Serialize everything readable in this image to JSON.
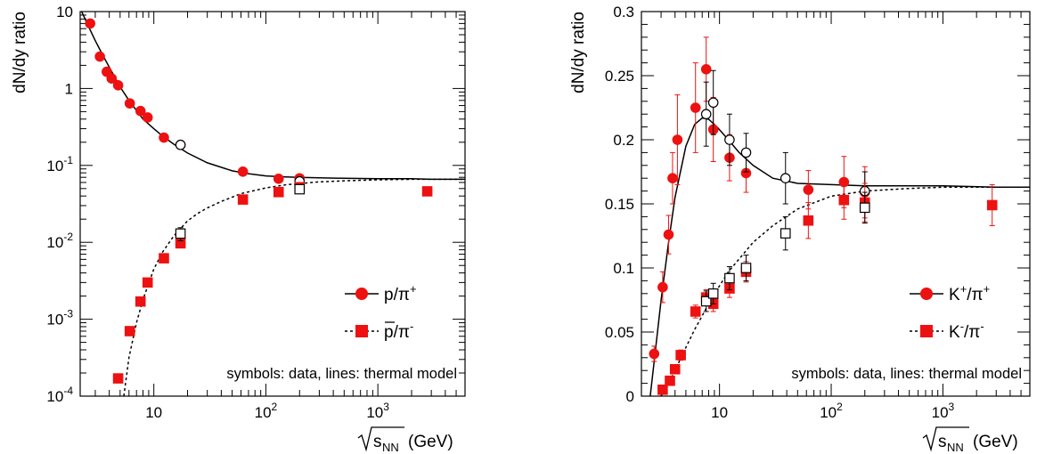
{
  "chart_data": [
    {
      "type": "scatter",
      "ylabel": "dN/dy ratio",
      "xlabel": "(GeV)",
      "xlabel_sqrt": "s",
      "xlabel_sub": "NN",
      "xscale": "log",
      "yscale": "log",
      "xlim": [
        2.2,
        6000
      ],
      "ylim": [
        0.0001,
        10
      ],
      "xtick_labels": [
        {
          "value": 10,
          "base": "10",
          "exp": ""
        },
        {
          "value": 100,
          "base": "10",
          "exp": "2"
        },
        {
          "value": 1000,
          "base": "10",
          "exp": "3"
        }
      ],
      "ytick_labels": [
        {
          "value": 0.0001,
          "base": "10",
          "exp": "-4"
        },
        {
          "value": 0.001,
          "base": "10",
          "exp": "-3"
        },
        {
          "value": 0.01,
          "base": "10",
          "exp": "-2"
        },
        {
          "value": 0.1,
          "base": "10",
          "exp": "-1"
        },
        {
          "value": 1,
          "base": "1",
          "exp": ""
        },
        {
          "value": 10,
          "base": "10",
          "exp": ""
        }
      ],
      "annotation": "symbols: data, lines: thermal model",
      "legend_position": "lower-right",
      "legend": [
        {
          "base": "p/π",
          "sup": "+",
          "marker": "circle",
          "line": "solid"
        },
        {
          "base": "p/π",
          "sup": "-",
          "marker": "square",
          "line": "dotted",
          "overline": true
        }
      ],
      "series": [
        {
          "id": "p_pi_plus_data",
          "marker": "circle",
          "color": "#ee1111",
          "filled": true,
          "x": [
            2.7,
            3.3,
            3.8,
            4.2,
            4.8,
            6.1,
            7.6,
            8.8,
            12.3,
            17.3,
            62.4,
            130,
            200
          ],
          "y": [
            7.0,
            2.6,
            1.65,
            1.35,
            1.1,
            0.64,
            0.51,
            0.42,
            0.23,
            0.185,
            0.083,
            0.067,
            0.068
          ],
          "err": [
            0.6,
            0.2,
            0.12,
            0.1,
            0.08,
            0.05,
            0.04,
            0.03,
            0.02,
            0.015,
            0.01,
            0.006,
            0.008
          ]
        },
        {
          "id": "p_pi_plus_data_open",
          "marker": "circle",
          "color": "#000000",
          "filled": false,
          "x": [
            17.3,
            200
          ],
          "y": [
            0.185,
            0.062
          ],
          "err": [
            0.012,
            0.006
          ]
        },
        {
          "id": "pbar_pi_minus_data",
          "marker": "square",
          "color": "#ee1111",
          "filled": true,
          "x": [
            4.8,
            6.1,
            7.6,
            8.8,
            12.3,
            17.3,
            62.4,
            130,
            200,
            2760
          ],
          "y": [
            0.00017,
            0.0007,
            0.0017,
            0.003,
            0.0062,
            0.0097,
            0.036,
            0.045,
            0.052,
            0.046
          ],
          "err": [
            2e-05,
            8e-05,
            0.0002,
            0.0003,
            0.0006,
            0.001,
            0.004,
            0.005,
            0.006,
            0.004
          ]
        },
        {
          "id": "pbar_pi_minus_data_open",
          "marker": "square",
          "color": "#000000",
          "filled": false,
          "x": [
            17.3,
            200
          ],
          "y": [
            0.013,
            0.049
          ],
          "err": [
            0.0025,
            0.005
          ]
        },
        {
          "id": "thermal_model_p_pi_plus",
          "type": "line",
          "style": "solid",
          "x": [
            2.2,
            2.6,
            3,
            3.5,
            4,
            5,
            6,
            8,
            10,
            12,
            15,
            20,
            30,
            50,
            70,
            100,
            150,
            200,
            300,
            500,
            1000,
            2000,
            3000,
            6000
          ],
          "y": [
            11,
            6.5,
            4.2,
            2.7,
            1.9,
            1.05,
            0.7,
            0.4,
            0.3,
            0.24,
            0.19,
            0.145,
            0.108,
            0.085,
            0.078,
            0.073,
            0.071,
            0.07,
            0.069,
            0.068,
            0.067,
            0.067,
            0.066,
            0.066
          ]
        },
        {
          "id": "thermal_model_pbar_pi_minus",
          "type": "line",
          "style": "dotted",
          "x": [
            5.4,
            6,
            7,
            8,
            10,
            12,
            15,
            20,
            25,
            30,
            40,
            60,
            100,
            150,
            200,
            300,
            500,
            1000,
            2000,
            3000,
            6000
          ],
          "y": [
            0.0001,
            0.00032,
            0.0009,
            0.0018,
            0.0045,
            0.0075,
            0.012,
            0.019,
            0.024,
            0.028,
            0.034,
            0.043,
            0.051,
            0.056,
            0.058,
            0.061,
            0.063,
            0.065,
            0.066,
            0.066,
            0.066
          ]
        }
      ]
    },
    {
      "type": "scatter",
      "ylabel": "dN/dy ratio",
      "xlabel": "(GeV)",
      "xlabel_sqrt": "s",
      "xlabel_sub": "NN",
      "xscale": "log",
      "yscale": "linear",
      "xlim": [
        2.0,
        6000
      ],
      "ylim": [
        0,
        0.3
      ],
      "xtick_labels": [
        {
          "value": 10,
          "base": "10",
          "exp": ""
        },
        {
          "value": 100,
          "base": "10",
          "exp": "2"
        },
        {
          "value": 1000,
          "base": "10",
          "exp": "3"
        }
      ],
      "ytick_labels": [
        {
          "value": 0,
          "text": "0"
        },
        {
          "value": 0.05,
          "text": "0.05"
        },
        {
          "value": 0.1,
          "text": "0.1"
        },
        {
          "value": 0.15,
          "text": "0.15"
        },
        {
          "value": 0.2,
          "text": "0.2"
        },
        {
          "value": 0.25,
          "text": "0.25"
        },
        {
          "value": 0.3,
          "text": "0.3"
        }
      ],
      "annotation": "symbols: data, lines: thermal model",
      "legend_position": "lower-right",
      "legend": [
        {
          "base": "K",
          "sup": "+",
          "base2": "/π",
          "sup2": "+",
          "marker": "circle",
          "line": "solid"
        },
        {
          "base": "K",
          "sup": "-",
          "base2": "/π",
          "sup2": "-",
          "marker": "square",
          "line": "dotted"
        }
      ],
      "series": [
        {
          "id": "k_plus_pi_plus_data",
          "marker": "circle",
          "color": "#ee1111",
          "filled": true,
          "x": [
            2.6,
            3.1,
            3.5,
            3.8,
            4.2,
            6.1,
            7.6,
            8.8,
            12.3,
            17.3,
            62.4,
            130,
            200
          ],
          "y": [
            0.033,
            0.085,
            0.126,
            0.17,
            0.2,
            0.225,
            0.255,
            0.208,
            0.186,
            0.174,
            0.161,
            0.167,
            0.159
          ],
          "err": [
            0.006,
            0.012,
            0.015,
            0.02,
            0.035,
            0.035,
            0.025,
            0.025,
            0.018,
            0.015,
            0.015,
            0.02,
            0.02
          ]
        },
        {
          "id": "k_plus_pi_plus_data_open",
          "marker": "circle",
          "color": "#000000",
          "filled": false,
          "x": [
            7.6,
            8.8,
            12.3,
            17.3,
            39,
            200
          ],
          "y": [
            0.22,
            0.229,
            0.2,
            0.19,
            0.17,
            0.16
          ],
          "err": [
            0.025,
            0.025,
            0.02,
            0.015,
            0.02,
            0.015
          ]
        },
        {
          "id": "k_minus_pi_minus_data",
          "marker": "square",
          "color": "#ee1111",
          "filled": true,
          "x": [
            3.1,
            3.6,
            4.0,
            4.5,
            6.1,
            7.6,
            8.8,
            12.3,
            17.3,
            62.4,
            130,
            200,
            2760
          ],
          "y": [
            0.005,
            0.012,
            0.021,
            0.032,
            0.066,
            0.077,
            0.072,
            0.084,
            0.097,
            0.137,
            0.153,
            0.151,
            0.149
          ],
          "err": [
            0.002,
            0.003,
            0.003,
            0.004,
            0.005,
            0.006,
            0.006,
            0.007,
            0.008,
            0.014,
            0.015,
            0.015,
            0.016
          ]
        },
        {
          "id": "k_minus_pi_minus_data_open",
          "marker": "square",
          "color": "#000000",
          "filled": false,
          "x": [
            7.6,
            8.8,
            12.3,
            17.3,
            39,
            200
          ],
          "y": [
            0.074,
            0.08,
            0.092,
            0.1,
            0.127,
            0.147
          ],
          "err": [
            0.008,
            0.008,
            0.009,
            0.01,
            0.013,
            0.012
          ]
        },
        {
          "id": "thermal_model_k_plus_pi_plus",
          "type": "line",
          "style": "solid",
          "x": [
            2.4,
            2.6,
            3.0,
            3.5,
            4.0,
            5.0,
            6.0,
            7.0,
            8.0,
            9.5,
            12,
            15,
            20,
            30,
            50,
            100,
            200,
            500,
            1000,
            3000,
            6000
          ],
          "y": [
            0.0,
            0.027,
            0.075,
            0.12,
            0.155,
            0.195,
            0.212,
            0.217,
            0.216,
            0.21,
            0.2,
            0.19,
            0.18,
            0.17,
            0.166,
            0.165,
            0.164,
            0.164,
            0.164,
            0.163,
            0.163
          ]
        },
        {
          "id": "thermal_model_k_minus_pi_minus",
          "type": "line",
          "style": "dotted",
          "x": [
            3.0,
            3.5,
            4.0,
            5.0,
            6.0,
            8.0,
            10,
            12,
            15,
            20,
            30,
            50,
            100,
            200,
            500,
            1000,
            3000,
            6000
          ],
          "y": [
            0.0,
            0.01,
            0.02,
            0.038,
            0.052,
            0.072,
            0.086,
            0.097,
            0.107,
            0.12,
            0.133,
            0.146,
            0.156,
            0.16,
            0.162,
            0.163,
            0.163,
            0.163
          ]
        }
      ]
    }
  ]
}
